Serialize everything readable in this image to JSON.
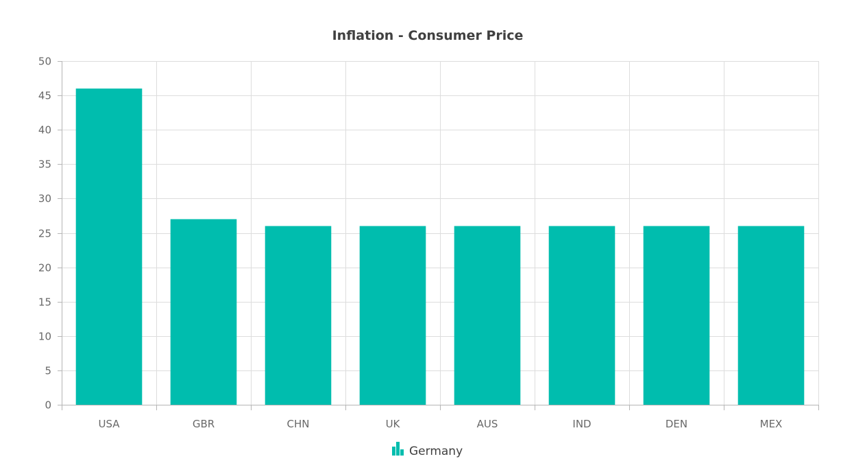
{
  "chart_data": {
    "type": "bar",
    "title": "Inflation - Consumer Price",
    "xlabel": "",
    "ylabel": "",
    "categories": [
      "USA",
      "GBR",
      "CHN",
      "UK",
      "AUS",
      "IND",
      "DEN",
      "MEX"
    ],
    "series": [
      {
        "name": "Germany",
        "values": [
          46,
          27,
          26,
          26,
          26,
          26,
          26,
          26
        ]
      }
    ],
    "ylim": [
      0,
      50
    ],
    "y_ticks": [
      0,
      5,
      10,
      15,
      20,
      25,
      30,
      35,
      40,
      45,
      50
    ],
    "grid": true,
    "legend": "bottom-center",
    "colors": {
      "bar": "#00bdae",
      "grid": "#dddddd",
      "axis": "#b5b5b5",
      "title": "#404040",
      "tick_text": "#686868"
    }
  }
}
